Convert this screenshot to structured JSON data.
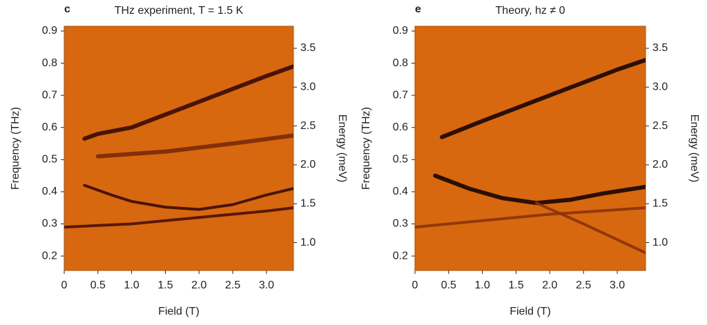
{
  "chart_data": [
    {
      "type": "line",
      "label": "c",
      "title": "THz experiment, T = 1.5 K",
      "xlabel": "Field (T)",
      "ylabel": "Frequency (THz)",
      "y2label": "Energy (meV)",
      "background": "#d8680f",
      "xlim": [
        0,
        3.4
      ],
      "ylim": [
        0.155,
        0.915
      ],
      "y2lim": [
        0.641,
        3.784
      ],
      "xticks": [
        0,
        0.5,
        {
          "value": 1,
          "label": "1.0"
        },
        1.5,
        {
          "value": 2,
          "label": "2.0"
        },
        2.5,
        {
          "value": 3,
          "label": "3.0"
        }
      ],
      "yticks": [
        0.2,
        0.3,
        0.4,
        0.5,
        0.6,
        0.7,
        0.8,
        0.9
      ],
      "y2ticks": [
        {
          "value": 1,
          "label": "1.0"
        },
        1.5,
        {
          "value": 2,
          "label": "2.0"
        },
        2.5,
        {
          "value": 3,
          "label": "3.0"
        },
        3.5
      ],
      "series": [
        {
          "color": "#3a0a04",
          "x": [
            0.3,
            0.5,
            1,
            1.5,
            2,
            2.5,
            3,
            3.4
          ],
          "values": [
            0.565,
            0.58,
            0.6,
            0.64,
            0.68,
            0.72,
            0.76,
            0.79
          ]
        },
        {
          "color": "#7a2a08",
          "x": [
            0.5,
            1.5,
            2.5,
            3.4
          ],
          "values": [
            0.51,
            0.525,
            0.55,
            0.575
          ]
        },
        {
          "color": "#3a0a04",
          "x": [
            0.3,
            0.7,
            1,
            1.5,
            2,
            2.5,
            3,
            3.4
          ],
          "values": [
            0.42,
            0.39,
            0.37,
            0.352,
            0.345,
            0.36,
            0.39,
            0.41
          ]
        },
        {
          "color": "#4a1006",
          "x": [
            0,
            0.5,
            1,
            1.5,
            2,
            2.5,
            3,
            3.4
          ],
          "values": [
            0.29,
            0.295,
            0.3,
            0.31,
            0.32,
            0.33,
            0.34,
            0.35
          ]
        }
      ]
    },
    {
      "type": "line",
      "label": "e",
      "title": "Theory, hz ≠ 0",
      "xlabel": "Field (T)",
      "ylabel": "Frequency (THz)",
      "y2label": "Energy (meV)",
      "background": "#d8680f",
      "xlim": [
        0,
        3.42
      ],
      "ylim": [
        0.155,
        0.915
      ],
      "y2lim": [
        0.641,
        3.784
      ],
      "xticks": [
        0,
        0.5,
        {
          "value": 1,
          "label": "1.0"
        },
        1.5,
        {
          "value": 2,
          "label": "2.0"
        },
        2.5,
        {
          "value": 3,
          "label": "3.0"
        }
      ],
      "yticks": [
        0.2,
        0.3,
        0.4,
        0.5,
        0.6,
        0.7,
        0.8,
        0.9
      ],
      "y2ticks": [
        {
          "value": 1,
          "label": "1.0"
        },
        1.5,
        {
          "value": 2,
          "label": "2.0"
        },
        2.5,
        {
          "value": 3,
          "label": "3.0"
        },
        3.5
      ],
      "series": [
        {
          "color": "#1a0502",
          "x": [
            0.4,
            1,
            1.5,
            2,
            2.5,
            3,
            3.42
          ],
          "values": [
            0.57,
            0.62,
            0.66,
            0.7,
            0.74,
            0.78,
            0.81
          ]
        },
        {
          "color": "#1a0502",
          "x": [
            0.3,
            0.8,
            1.3,
            1.8,
            2.3,
            2.8,
            3.42
          ],
          "values": [
            0.45,
            0.41,
            0.38,
            0.365,
            0.375,
            0.395,
            0.415
          ]
        },
        {
          "color": "#8a3208",
          "x": [
            0,
            1,
            2,
            3.42
          ],
          "values": [
            0.29,
            0.31,
            0.33,
            0.35
          ]
        },
        {
          "color": "#8a3208",
          "x": [
            1.8,
            2.5,
            3.42
          ],
          "values": [
            0.365,
            0.3,
            0.21
          ]
        }
      ]
    }
  ]
}
